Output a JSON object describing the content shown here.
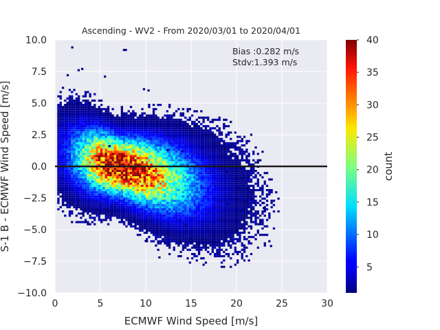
{
  "chart_data": {
    "type": "heatmap",
    "title": "Ascending - WV2 - From 2020/03/01 to 2020/04/01",
    "xlabel": "ECMWF Wind Speed [m/s]",
    "ylabel": "S-1 B - ECMWF Wind Speed [m/s]",
    "xlim": [
      0,
      30
    ],
    "ylim": [
      -10,
      10
    ],
    "xticks": [
      "0",
      "5",
      "10",
      "15",
      "20",
      "25",
      "30"
    ],
    "yticks": [
      "−10.0",
      "−7.5",
      "−5.0",
      "−2.5",
      "0.0",
      "2.5",
      "5.0",
      "7.5",
      "10.0"
    ],
    "annotations": {
      "bias": "Bias :0.282 m/s",
      "stdv": "Stdv:1.393 m/s"
    },
    "reference_line_y": 0,
    "grid": true,
    "colorbar": {
      "label": "count",
      "range": [
        1,
        40
      ],
      "ticks": [
        "5",
        "10",
        "15",
        "20",
        "25",
        "30",
        "35",
        "40"
      ],
      "colormap": "jet"
    },
    "density_model": {
      "peak_count": 40,
      "peak_x": 7.0,
      "peak_y": 0.0,
      "trend_slope": -0.18,
      "spread_x": 4.2,
      "spread_y": 1.4
    },
    "outlier_points": [
      [
        1.9,
        9.4
      ],
      [
        7.6,
        9.2
      ],
      [
        7.8,
        9.2
      ],
      [
        3.0,
        7.7
      ],
      [
        2.6,
        7.6
      ],
      [
        5.5,
        7.1
      ],
      [
        1.4,
        7.2
      ],
      [
        9.8,
        6.1
      ],
      [
        10.3,
        6.0
      ],
      [
        13.2,
        2.4
      ],
      [
        16.2,
        1.4
      ],
      [
        18.9,
        -0.4
      ],
      [
        20.2,
        -1.7
      ],
      [
        21.1,
        -2.8
      ],
      [
        22.0,
        -2.9
      ],
      [
        23.0,
        -2.9
      ],
      [
        23.0,
        -3.3
      ],
      [
        19.0,
        -3.0
      ],
      [
        17.5,
        -3.3
      ],
      [
        14.4,
        -4.7
      ],
      [
        15.0,
        -5.7
      ],
      [
        10.0,
        -5.9
      ],
      [
        12.6,
        -6.1
      ],
      [
        15.3,
        -6.3
      ],
      [
        23.8,
        -6.3
      ],
      [
        11.5,
        -7.2
      ],
      [
        6.0,
        1.6
      ],
      [
        12.4,
        1.3
      ],
      [
        14.0,
        1.2
      ]
    ],
    "colors": {
      "plot_background": "#eaeaf2",
      "grid": "#ffffff",
      "zero_line": "#1a1a1a"
    }
  }
}
